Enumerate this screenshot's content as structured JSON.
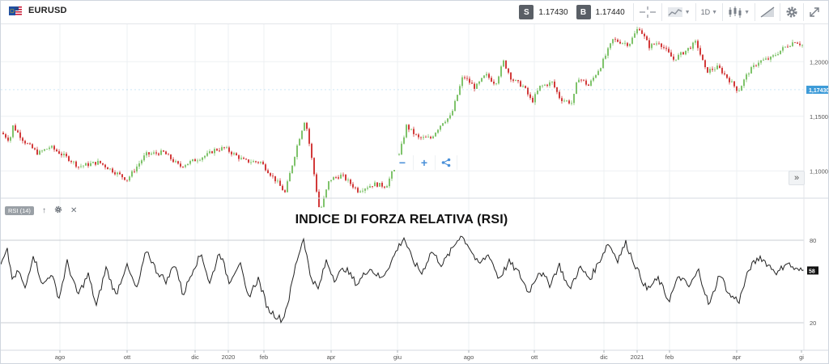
{
  "toolbar": {
    "symbol": "EURUSD",
    "sell_label": "S",
    "sell_price": "1.17430",
    "buy_label": "B",
    "buy_price": "1.17440",
    "timeframe": "1D",
    "icons": [
      "crosshair-icon",
      "chart-type-icon",
      "candles-icon",
      "draw-icon",
      "gear-icon",
      "fullscreen-icon"
    ]
  },
  "rsi_panel": {
    "badge": "RSI (14)",
    "heading": "INDICE DI FORZA RELATIVA (RSI)"
  },
  "chart_data": [
    {
      "type": "candlestick",
      "title": "",
      "series_name": "EURUSD",
      "x_ticks": [
        "ago",
        "ott",
        "dic",
        "2020",
        "feb",
        "apr",
        "giu",
        "ago",
        "ott",
        "dic",
        "2021",
        "feb",
        "apr",
        "gi"
      ],
      "y_ticks": [
        "1,1000",
        "1,1500",
        "1,2000"
      ],
      "ylim": [
        1.075,
        1.235
      ],
      "current_price_label": "1,17430",
      "current_price": 1.1743,
      "up_color": "#7fc36b",
      "down_color": "#d23a3a",
      "keypoints": [
        [
          0,
          1.135
        ],
        [
          10,
          1.128
        ],
        [
          14,
          1.141
        ],
        [
          28,
          1.127
        ],
        [
          45,
          1.116
        ],
        [
          60,
          1.122
        ],
        [
          85,
          1.11
        ],
        [
          95,
          1.104
        ],
        [
          120,
          1.108
        ],
        [
          155,
          1.092
        ],
        [
          178,
          1.115
        ],
        [
          200,
          1.117
        ],
        [
          220,
          1.104
        ],
        [
          255,
          1.115
        ],
        [
          262,
          1.119
        ],
        [
          275,
          1.121
        ],
        [
          300,
          1.109
        ],
        [
          320,
          1.108
        ],
        [
          340,
          1.09
        ],
        [
          350,
          1.08
        ],
        [
          366,
          1.126
        ],
        [
          375,
          1.148
        ],
        [
          385,
          1.102
        ],
        [
          393,
          1.062
        ],
        [
          405,
          1.092
        ],
        [
          420,
          1.096
        ],
        [
          440,
          1.082
        ],
        [
          460,
          1.088
        ],
        [
          475,
          1.086
        ],
        [
          490,
          1.111
        ],
        [
          500,
          1.141
        ],
        [
          515,
          1.13
        ],
        [
          530,
          1.13
        ],
        [
          545,
          1.145
        ],
        [
          555,
          1.15
        ],
        [
          570,
          1.187
        ],
        [
          585,
          1.176
        ],
        [
          598,
          1.188
        ],
        [
          610,
          1.18
        ],
        [
          620,
          1.2
        ],
        [
          630,
          1.184
        ],
        [
          645,
          1.177
        ],
        [
          655,
          1.163
        ],
        [
          665,
          1.177
        ],
        [
          680,
          1.181
        ],
        [
          690,
          1.166
        ],
        [
          705,
          1.162
        ],
        [
          712,
          1.186
        ],
        [
          725,
          1.178
        ],
        [
          740,
          1.196
        ],
        [
          755,
          1.22
        ],
        [
          775,
          1.216
        ],
        [
          787,
          1.232
        ],
        [
          800,
          1.214
        ],
        [
          812,
          1.218
        ],
        [
          830,
          1.202
        ],
        [
          845,
          1.21
        ],
        [
          858,
          1.218
        ],
        [
          870,
          1.191
        ],
        [
          885,
          1.195
        ],
        [
          898,
          1.184
        ],
        [
          910,
          1.173
        ],
        [
          922,
          1.19
        ],
        [
          935,
          1.2
        ],
        [
          950,
          1.203
        ],
        [
          965,
          1.212
        ],
        [
          980,
          1.219
        ],
        [
          992,
          1.214
        ]
      ]
    },
    {
      "type": "line",
      "title": "",
      "series_name": "RSI (14)",
      "y_ticks": [
        "20",
        "80"
      ],
      "ylim": [
        0,
        100
      ],
      "current_value_label": "58",
      "current_value": 58,
      "keypoints": [
        [
          0,
          62
        ],
        [
          8,
          72
        ],
        [
          15,
          50
        ],
        [
          22,
          58
        ],
        [
          30,
          44
        ],
        [
          40,
          70
        ],
        [
          52,
          47
        ],
        [
          62,
          56
        ],
        [
          72,
          38
        ],
        [
          82,
          64
        ],
        [
          95,
          40
        ],
        [
          108,
          55
        ],
        [
          118,
          32
        ],
        [
          130,
          60
        ],
        [
          142,
          40
        ],
        [
          155,
          62
        ],
        [
          168,
          44
        ],
        [
          180,
          73
        ],
        [
          192,
          58
        ],
        [
          205,
          50
        ],
        [
          215,
          64
        ],
        [
          225,
          40
        ],
        [
          238,
          60
        ],
        [
          248,
          70
        ],
        [
          258,
          48
        ],
        [
          270,
          72
        ],
        [
          282,
          50
        ],
        [
          295,
          64
        ],
        [
          305,
          38
        ],
        [
          318,
          52
        ],
        [
          330,
          30
        ],
        [
          340,
          25
        ],
        [
          348,
          22
        ],
        [
          356,
          38
        ],
        [
          365,
          64
        ],
        [
          374,
          82
        ],
        [
          382,
          55
        ],
        [
          392,
          44
        ],
        [
          402,
          65
        ],
        [
          412,
          52
        ],
        [
          425,
          60
        ],
        [
          440,
          48
        ],
        [
          455,
          60
        ],
        [
          470,
          52
        ],
        [
          482,
          64
        ],
        [
          490,
          74
        ],
        [
          498,
          82
        ],
        [
          508,
          66
        ],
        [
          520,
          56
        ],
        [
          532,
          72
        ],
        [
          545,
          62
        ],
        [
          558,
          74
        ],
        [
          568,
          84
        ],
        [
          578,
          76
        ],
        [
          590,
          62
        ],
        [
          603,
          70
        ],
        [
          615,
          52
        ],
        [
          628,
          64
        ],
        [
          640,
          56
        ],
        [
          652,
          42
        ],
        [
          665,
          58
        ],
        [
          678,
          48
        ],
        [
          690,
          62
        ],
        [
          702,
          44
        ],
        [
          715,
          60
        ],
        [
          728,
          52
        ],
        [
          742,
          68
        ],
        [
          750,
          78
        ],
        [
          762,
          66
        ],
        [
          772,
          78
        ],
        [
          785,
          60
        ],
        [
          798,
          44
        ],
        [
          812,
          52
        ],
        [
          825,
          36
        ],
        [
          838,
          54
        ],
        [
          850,
          46
        ],
        [
          862,
          58
        ],
        [
          875,
          32
        ],
        [
          888,
          56
        ],
        [
          900,
          40
        ],
        [
          912,
          36
        ],
        [
          925,
          60
        ],
        [
          938,
          68
        ],
        [
          948,
          62
        ],
        [
          960,
          56
        ],
        [
          970,
          64
        ],
        [
          983,
          58
        ],
        [
          992,
          58
        ]
      ]
    }
  ]
}
